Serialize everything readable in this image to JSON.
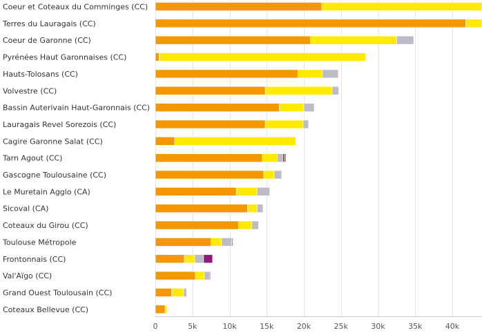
{
  "chart_data": {
    "type": "bar",
    "orientation": "horizontal",
    "stacked": true,
    "grid": true,
    "legend": "none",
    "xlim": [
      0,
      44000
    ],
    "x_ticks": [
      0,
      5000,
      10000,
      15000,
      20000,
      25000,
      30000,
      35000,
      40000
    ],
    "x_tick_labels": [
      "0",
      "5k",
      "10k",
      "15k",
      "20k",
      "25k",
      "30k",
      "35k",
      "40k"
    ],
    "categories": [
      "Coeur et Coteaux du Comminges (CC)",
      "Terres du Lauragais (CC)",
      "Coeur de Garonne (CC)",
      "Pyrénées Haut Garonnaises (CC)",
      "Hauts-Tolosans (CC)",
      "Volvestre (CC)",
      "Bassin Auterivain Haut-Garonnais (CC)",
      "Lauragais Revel Sorezois (CC)",
      "Cagire Garonne Salat (CC)",
      "Tarn Agout (CC)",
      "Gascogne Toulousaine (CC)",
      "Le Muretain Agglo (CA)",
      "Sicoval (CA)",
      "Coteaux du Girou (CC)",
      "Toulouse Métropole",
      "Frontonnais (CC)",
      "Val'Aïgo (CC)",
      "Grand Ouest Toulousain (CC)",
      "Coteaux Bellevue (CC)"
    ],
    "series": [
      {
        "color": "#f39800",
        "values": [
          22400,
          41800,
          20900,
          500,
          19200,
          14800,
          16700,
          14800,
          2600,
          14400,
          14600,
          10900,
          12400,
          11200,
          7500,
          3900,
          5400,
          2200,
          1300
        ]
      },
      {
        "color": "#ffeb00",
        "values": [
          21600,
          2200,
          11600,
          27800,
          3300,
          9000,
          3300,
          5100,
          16300,
          2000,
          1400,
          2800,
          1300,
          1800,
          1400,
          1400,
          1200,
          1600,
          200
        ]
      },
      {
        "color": "#bcbcc8",
        "values": [
          0,
          0,
          2300,
          0,
          2000,
          900,
          1400,
          600,
          0,
          800,
          1000,
          1700,
          800,
          900,
          1400,
          1200,
          700,
          400,
          0
        ]
      },
      {
        "color": "#8a0a2e",
        "values": [
          0,
          0,
          0,
          0,
          100,
          0,
          0,
          100,
          0,
          200,
          0,
          0,
          0,
          0,
          100,
          0,
          100,
          0,
          0
        ]
      },
      {
        "color": "#6aa84f",
        "values": [
          0,
          0,
          0,
          0,
          0,
          0,
          0,
          0,
          0,
          200,
          0,
          0,
          0,
          0,
          0,
          0,
          0,
          0,
          0
        ]
      },
      {
        "color": "#8e1a7a",
        "values": [
          0,
          0,
          0,
          0,
          0,
          0,
          0,
          0,
          0,
          0,
          0,
          0,
          0,
          0,
          0,
          1200,
          0,
          0,
          0
        ]
      }
    ]
  }
}
